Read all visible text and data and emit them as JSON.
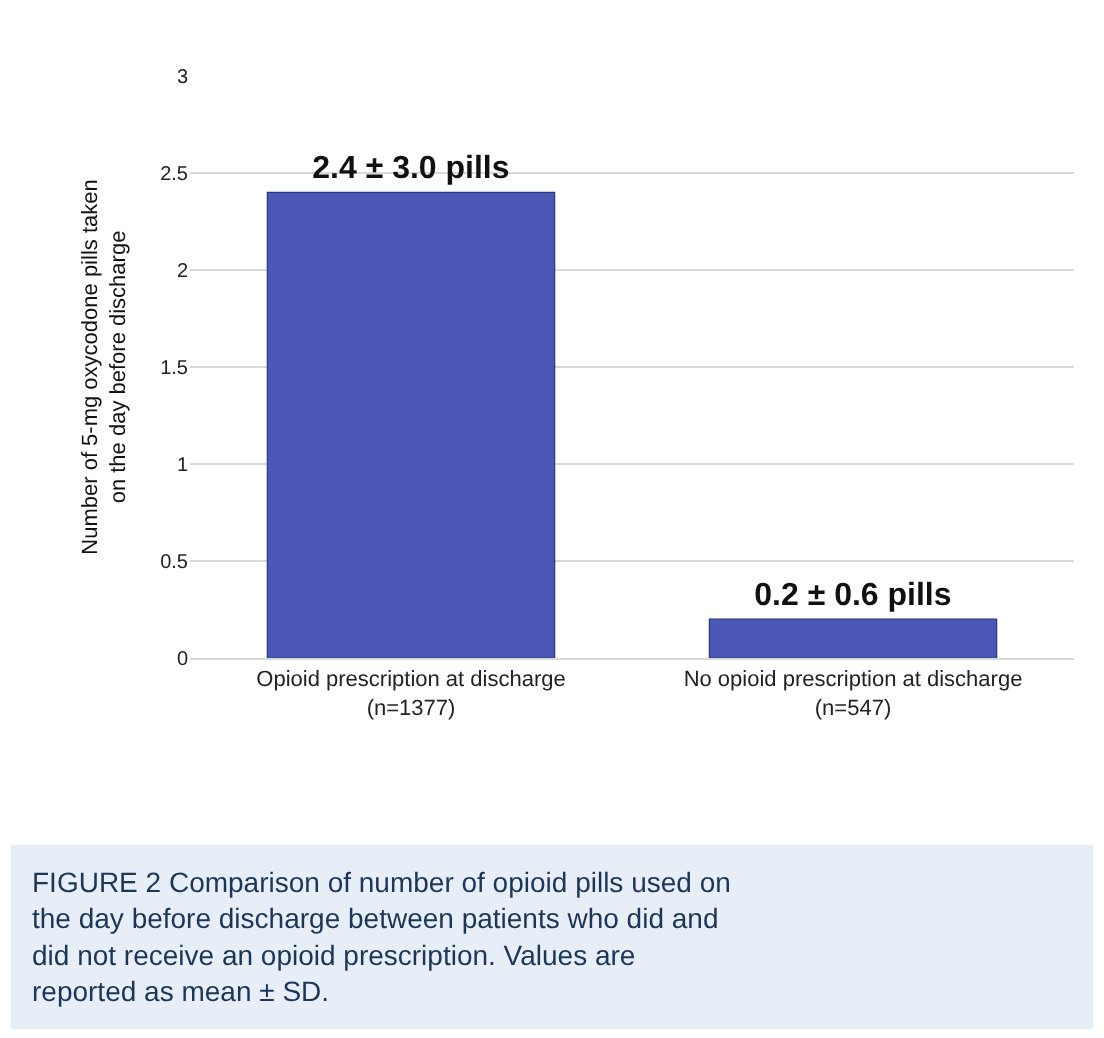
{
  "chart_data": {
    "type": "bar",
    "categories": [
      "Opioid prescription at discharge\n(n=1377)",
      "No opioid prescription at discharge\n(n=547)"
    ],
    "values": [
      2.4,
      0.2
    ],
    "color": "#4b58b6",
    "value_labels": [
      "2.4 ± 3.0 pills",
      "0.2 ± 0.6 pills"
    ],
    "ylabel": "Number of 5-mg oxycodone pills taken\non the day before discharge",
    "ylim": [
      0,
      3
    ],
    "yticks": [
      0,
      0.5,
      1,
      1.5,
      2,
      2.5,
      3
    ],
    "grid": "y",
    "legend": false,
    "annotations": [
      "FIGURE 2 Comparison of number of opioid pills used on the day before discharge between patients who did and did not receive an opioid prescription. Values are reported as mean ± SD."
    ]
  }
}
